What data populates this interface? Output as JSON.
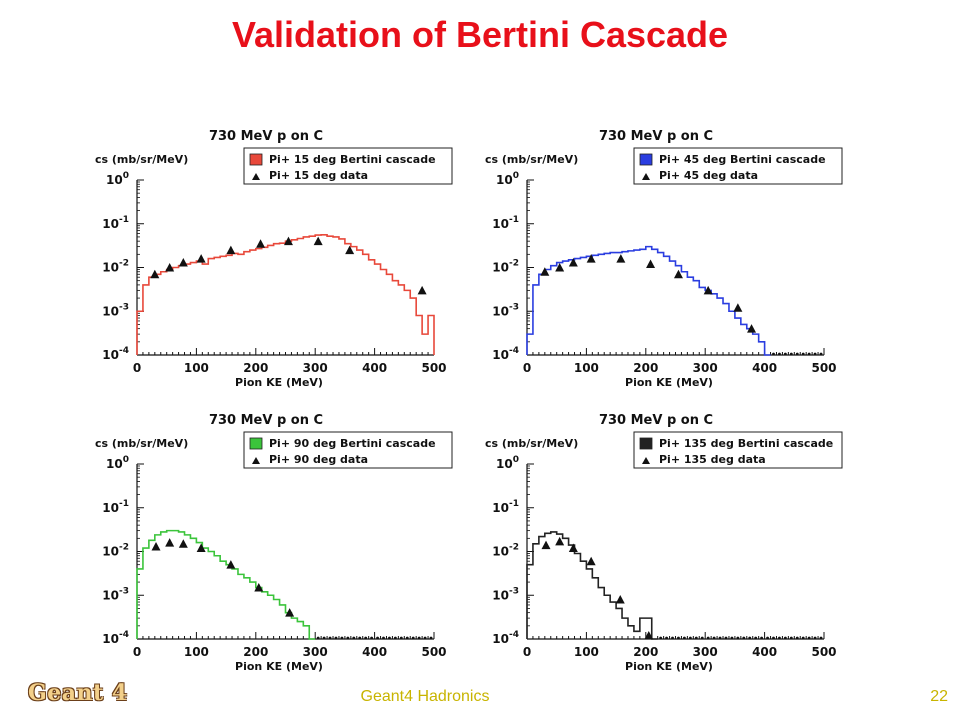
{
  "slide": {
    "title": "Validation of Bertini Cascade",
    "footer_logo": "Geant 4",
    "footer_center": "Geant4 Hadronics",
    "page_number": "22"
  },
  "chart_data": [
    {
      "type": "line",
      "title": "730 MeV p on C",
      "xlabel": "Pion KE (MeV)",
      "ylabel": "cs (mb/sr/MeV)",
      "xlim": [
        0,
        500
      ],
      "ylim": [
        0.0001,
        1
      ],
      "yscale": "log",
      "xticks": [
        "0",
        "100",
        "200",
        "300",
        "400",
        "500"
      ],
      "yticks": [
        "10^0",
        "10^-1",
        "10^-2",
        "10^-3",
        "10^-4"
      ],
      "legend_position": "top-right",
      "series": [
        {
          "name": "Pi+ 15 deg Bertini cascade",
          "kind": "histogram",
          "color": "#e8483a",
          "x": [
            5,
            15,
            25,
            35,
            45,
            55,
            65,
            75,
            85,
            95,
            105,
            115,
            125,
            135,
            145,
            155,
            165,
            175,
            185,
            195,
            205,
            215,
            225,
            235,
            245,
            255,
            265,
            275,
            285,
            295,
            305,
            315,
            325,
            335,
            345,
            355,
            365,
            375,
            385,
            395,
            405,
            415,
            425,
            435,
            445,
            455,
            465,
            475,
            485,
            495
          ],
          "y": [
            0.001,
            0.004,
            0.006,
            0.007,
            0.008,
            0.009,
            0.01,
            0.011,
            0.012,
            0.013,
            0.014,
            0.012,
            0.016,
            0.017,
            0.018,
            0.019,
            0.021,
            0.02,
            0.023,
            0.025,
            0.027,
            0.029,
            0.032,
            0.035,
            0.036,
            0.04,
            0.043,
            0.046,
            0.05,
            0.052,
            0.055,
            0.056,
            0.052,
            0.05,
            0.045,
            0.035,
            0.03,
            0.025,
            0.02,
            0.015,
            0.012,
            0.009,
            0.007,
            0.005,
            0.004,
            0.003,
            0.002,
            0.0008,
            0.0003,
            0.0008
          ]
        },
        {
          "name": "Pi+ 15 deg data",
          "kind": "markers",
          "x": [
            30,
            55,
            78,
            108,
            158,
            208,
            255,
            305,
            358,
            480
          ],
          "y": [
            0.007,
            0.01,
            0.013,
            0.016,
            0.025,
            0.035,
            0.04,
            0.04,
            0.025,
            0.003
          ]
        }
      ]
    },
    {
      "type": "line",
      "title": "730 MeV p on C",
      "xlabel": "Pion KE (MeV)",
      "ylabel": "cs (mb/sr/MeV)",
      "xlim": [
        0,
        500
      ],
      "ylim": [
        0.0001,
        1
      ],
      "yscale": "log",
      "xticks": [
        "0",
        "100",
        "200",
        "300",
        "400",
        "500"
      ],
      "yticks": [
        "10^0",
        "10^-1",
        "10^-2",
        "10^-3",
        "10^-4"
      ],
      "legend_position": "top-right",
      "series": [
        {
          "name": "Pi+ 45 deg Bertini cascade",
          "kind": "histogram",
          "color": "#2a3de0",
          "x": [
            5,
            15,
            25,
            35,
            45,
            55,
            65,
            75,
            85,
            95,
            105,
            115,
            125,
            135,
            145,
            155,
            165,
            175,
            185,
            195,
            205,
            215,
            225,
            235,
            245,
            255,
            265,
            275,
            285,
            295,
            305,
            315,
            325,
            335,
            345,
            355,
            365,
            375,
            385,
            395,
            405
          ],
          "y": [
            0.0003,
            0.004,
            0.007,
            0.009,
            0.011,
            0.013,
            0.014,
            0.015,
            0.016,
            0.017,
            0.018,
            0.019,
            0.02,
            0.021,
            0.022,
            0.022,
            0.023,
            0.024,
            0.025,
            0.026,
            0.03,
            0.026,
            0.022,
            0.018,
            0.014,
            0.011,
            0.008,
            0.006,
            0.005,
            0.0035,
            0.003,
            0.0025,
            0.002,
            0.0015,
            0.001,
            0.0007,
            0.0005,
            0.0004,
            0.0003,
            0.0002,
            0.0001
          ]
        },
        {
          "name": "Pi+ 45 deg data",
          "kind": "markers",
          "x": [
            30,
            55,
            78,
            108,
            158,
            208,
            255,
            305,
            355,
            378
          ],
          "y": [
            0.008,
            0.01,
            0.013,
            0.016,
            0.016,
            0.012,
            0.007,
            0.003,
            0.0012,
            0.0004
          ]
        }
      ]
    },
    {
      "type": "line",
      "title": "730 MeV p on C",
      "xlabel": "Pion KE (MeV)",
      "ylabel": "cs (mb/sr/MeV)",
      "xlim": [
        0,
        500
      ],
      "ylim": [
        0.0001,
        1
      ],
      "yscale": "log",
      "xticks": [
        "0",
        "100",
        "200",
        "300",
        "400",
        "500"
      ],
      "yticks": [
        "10^0",
        "10^-1",
        "10^-2",
        "10^-3",
        "10^-4"
      ],
      "legend_position": "top-right",
      "series": [
        {
          "name": "Pi+ 90 deg Bertini cascade",
          "kind": "histogram",
          "color": "#3bc43b",
          "x": [
            5,
            15,
            25,
            35,
            45,
            55,
            65,
            75,
            85,
            95,
            105,
            115,
            125,
            135,
            145,
            155,
            165,
            175,
            185,
            195,
            205,
            215,
            225,
            235,
            245,
            255,
            265,
            275,
            285,
            295
          ],
          "y": [
            0.004,
            0.012,
            0.018,
            0.024,
            0.028,
            0.03,
            0.03,
            0.028,
            0.024,
            0.02,
            0.016,
            0.012,
            0.01,
            0.008,
            0.006,
            0.005,
            0.004,
            0.003,
            0.0025,
            0.002,
            0.0015,
            0.0012,
            0.001,
            0.0008,
            0.0006,
            0.0004,
            0.0003,
            0.00025,
            0.0002,
            0.0001
          ]
        },
        {
          "name": "Pi+ 90 deg data",
          "kind": "markers",
          "x": [
            32,
            55,
            78,
            108,
            158,
            205,
            257
          ],
          "y": [
            0.013,
            0.016,
            0.015,
            0.012,
            0.005,
            0.0015,
            0.0004
          ]
        }
      ]
    },
    {
      "type": "line",
      "title": "730 MeV p on C",
      "xlabel": "Pion KE (MeV)",
      "ylabel": "cs (mb/sr/MeV)",
      "xlim": [
        0,
        500
      ],
      "ylim": [
        0.0001,
        1
      ],
      "yscale": "log",
      "xticks": [
        "0",
        "100",
        "200",
        "300",
        "400",
        "500"
      ],
      "yticks": [
        "10^0",
        "10^-1",
        "10^-2",
        "10^-3",
        "10^-4"
      ],
      "legend_position": "top-right",
      "series": [
        {
          "name": "Pi+ 135 deg Bertini cascade",
          "kind": "histogram",
          "color": "#222222",
          "x": [
            5,
            15,
            25,
            35,
            45,
            55,
            65,
            75,
            85,
            95,
            105,
            115,
            125,
            135,
            145,
            155,
            165,
            175,
            185,
            195,
            205,
            215
          ],
          "y": [
            0.005,
            0.015,
            0.022,
            0.026,
            0.028,
            0.025,
            0.02,
            0.014,
            0.009,
            0.006,
            0.004,
            0.0025,
            0.0015,
            0.001,
            0.0007,
            0.0005,
            0.0003,
            0.0002,
            0.00015,
            0.0003,
            0.0003,
            0.0001
          ]
        },
        {
          "name": "Pi+ 135 deg data",
          "kind": "markers",
          "x": [
            32,
            55,
            78,
            108,
            157,
            205
          ],
          "y": [
            0.014,
            0.017,
            0.012,
            0.006,
            0.0008,
            0.00012
          ]
        }
      ]
    }
  ]
}
